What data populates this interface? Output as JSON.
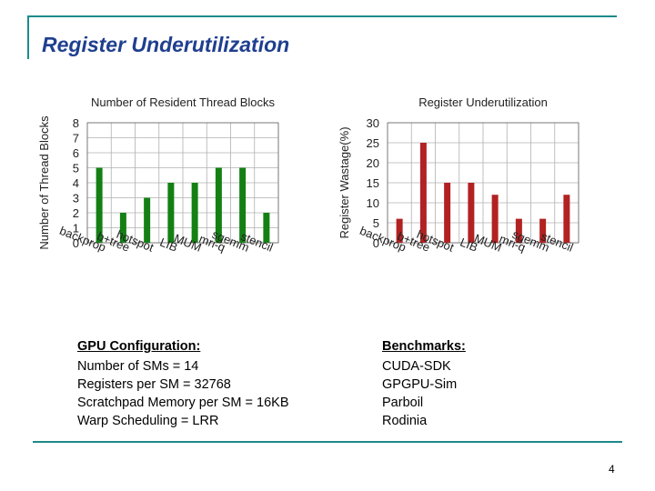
{
  "slide": {
    "title": "Register Underutilization",
    "page_number": "4"
  },
  "colors": {
    "accent_rule": "#1e8a8a",
    "title_text": "#1f3f8f",
    "bar_left": "#148014",
    "bar_right": "#b22222",
    "grid": "#b0b0b0"
  },
  "gpu_config": {
    "heading": "GPU Configuration:",
    "lines": [
      "Number of SMs = 14",
      "Registers per SM = 32768",
      "Scratchpad Memory per SM = 16KB",
      "Warp Scheduling = LRR"
    ]
  },
  "benchmarks": {
    "heading": "Benchmarks:",
    "lines": [
      "CUDA-SDK",
      "GPGPU-Sim",
      "Parboil",
      "Rodinia"
    ]
  },
  "chart_data": [
    {
      "type": "bar",
      "title": "Number of Resident Thread Blocks",
      "xlabel": "",
      "ylabel": "Number of Thread Blocks",
      "categories": [
        "backprop",
        "b+tree",
        "hotspot",
        "LIB",
        "MUM",
        "mri-q",
        "sgemm",
        "stencil"
      ],
      "values": [
        5,
        2,
        3,
        4,
        4,
        5,
        5,
        2
      ],
      "ylim": [
        0,
        8
      ],
      "yticks": [
        0,
        1,
        2,
        3,
        4,
        5,
        6,
        7,
        8
      ],
      "grid": true,
      "color": "#148014"
    },
    {
      "type": "bar",
      "title": "Register Underutilization",
      "xlabel": "",
      "ylabel": "Register Wastage(%)",
      "categories": [
        "backprop",
        "b+tree",
        "hotspot",
        "LIB",
        "MUM",
        "mri-q",
        "sgemm",
        "stencil"
      ],
      "values": [
        6,
        25,
        15,
        15,
        12,
        6,
        6,
        12
      ],
      "ylim": [
        0,
        30
      ],
      "yticks": [
        0,
        5,
        10,
        15,
        20,
        25,
        30
      ],
      "grid": true,
      "color": "#b22222"
    }
  ]
}
